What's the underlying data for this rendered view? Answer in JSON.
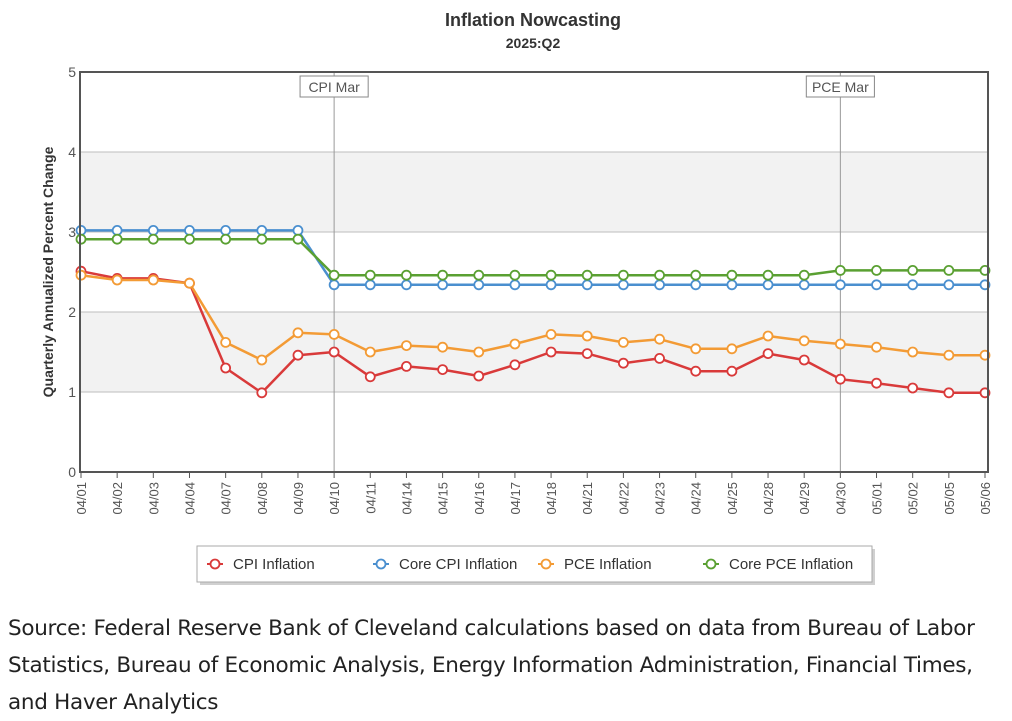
{
  "chart_data": {
    "type": "line",
    "title": "Inflation Nowcasting",
    "subtitle": "2025:Q2",
    "xlabel": "",
    "ylabel": "Quarterly Annualized Percent Change",
    "ylim": [
      0,
      5
    ],
    "yticks": [
      "0",
      "1",
      "2",
      "3",
      "4",
      "5"
    ],
    "grid": true,
    "legend_position": "bottom-center",
    "categories": [
      "04/01",
      "04/02",
      "04/03",
      "04/04",
      "04/07",
      "04/08",
      "04/09",
      "04/10",
      "04/11",
      "04/14",
      "04/15",
      "04/16",
      "04/17",
      "04/18",
      "04/21",
      "04/22",
      "04/23",
      "04/24",
      "04/25",
      "04/28",
      "04/29",
      "04/30",
      "05/01",
      "05/02",
      "05/05",
      "05/06"
    ],
    "series": [
      {
        "name": "CPI Inflation",
        "color": "#d93a3a",
        "values": [
          2.51,
          2.42,
          2.42,
          2.36,
          1.3,
          0.99,
          1.46,
          1.5,
          1.19,
          1.32,
          1.28,
          1.2,
          1.34,
          1.5,
          1.48,
          1.36,
          1.42,
          1.26,
          1.26,
          1.48,
          1.4,
          1.16,
          1.11,
          1.05,
          0.99,
          0.99
        ]
      },
      {
        "name": "Core CPI Inflation",
        "color": "#4a8fcf",
        "values": [
          3.02,
          3.02,
          3.02,
          3.02,
          3.02,
          3.02,
          3.02,
          2.34,
          2.34,
          2.34,
          2.34,
          2.34,
          2.34,
          2.34,
          2.34,
          2.34,
          2.34,
          2.34,
          2.34,
          2.34,
          2.34,
          2.34,
          2.34,
          2.34,
          2.34,
          2.34
        ]
      },
      {
        "name": "PCE Inflation",
        "color": "#f39b35",
        "values": [
          2.46,
          2.4,
          2.4,
          2.36,
          1.62,
          1.4,
          1.74,
          1.72,
          1.5,
          1.58,
          1.56,
          1.5,
          1.6,
          1.72,
          1.7,
          1.62,
          1.66,
          1.54,
          1.54,
          1.7,
          1.64,
          1.6,
          1.56,
          1.5,
          1.46,
          1.46
        ]
      },
      {
        "name": "Core PCE Inflation",
        "color": "#5aa032",
        "values": [
          2.91,
          2.91,
          2.91,
          2.91,
          2.91,
          2.91,
          2.91,
          2.46,
          2.46,
          2.46,
          2.46,
          2.46,
          2.46,
          2.46,
          2.46,
          2.46,
          2.46,
          2.46,
          2.46,
          2.46,
          2.46,
          2.52,
          2.52,
          2.52,
          2.52,
          2.52
        ]
      }
    ],
    "annotations": [
      {
        "label": "CPI Mar",
        "at": "04/10"
      },
      {
        "label": "PCE Mar",
        "at": "04/30"
      }
    ]
  },
  "source_text": "Source: Federal Reserve Bank of Cleveland calculations based on data from Bureau of Labor Statistics, Bureau of Economic Analysis, Energy Information Administration, Financial Times, and Haver Analytics"
}
